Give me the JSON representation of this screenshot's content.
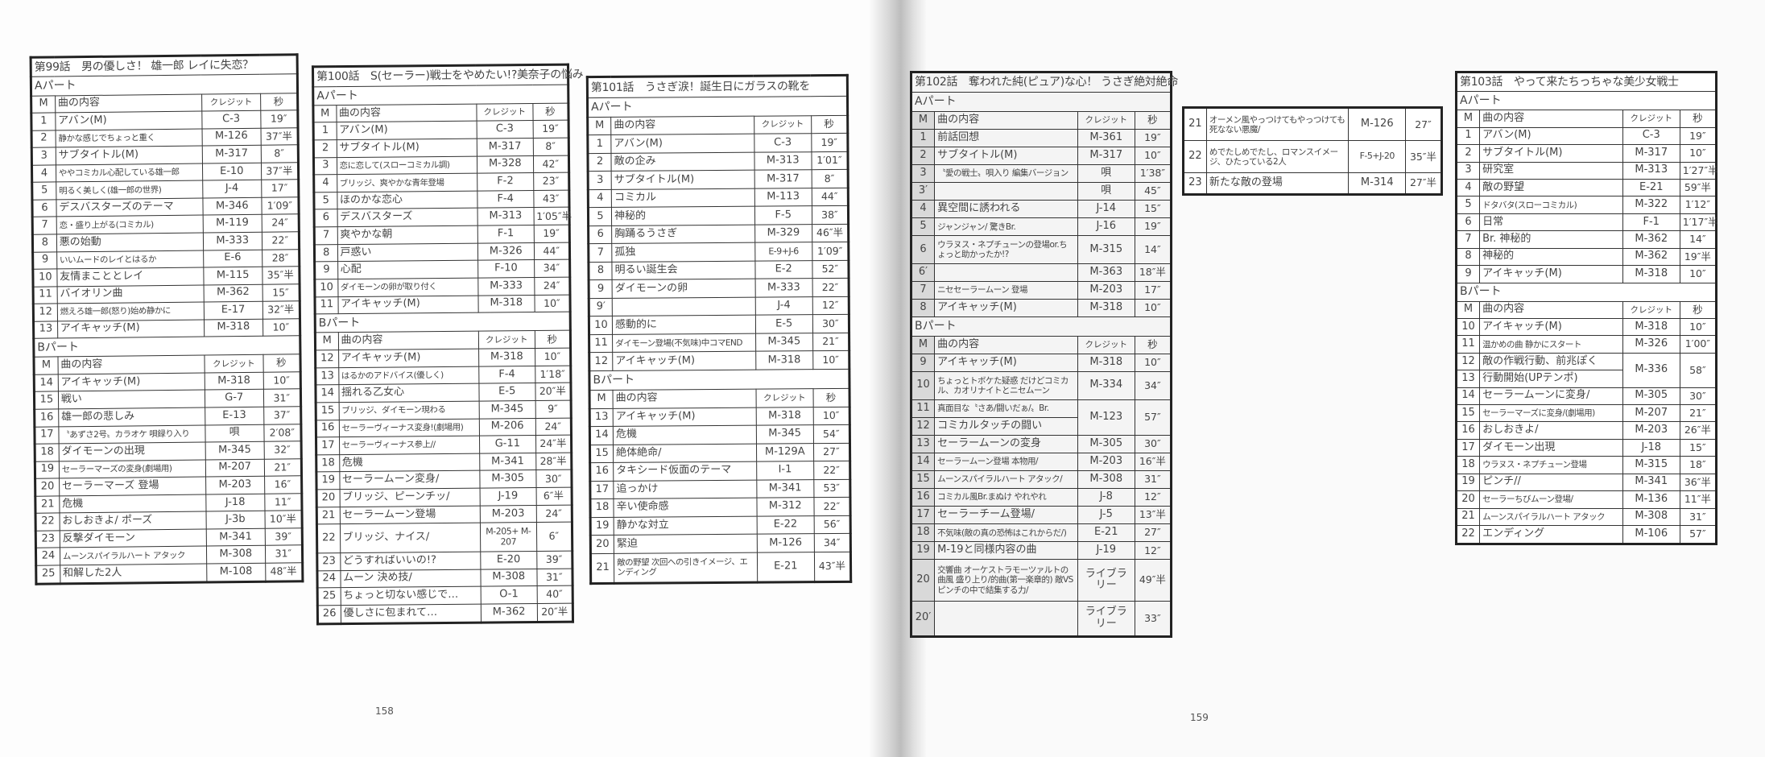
{
  "headers": {
    "m": "M",
    "content": "曲の内容",
    "credit": "クレジット",
    "sec": "秒"
  },
  "page_numbers": {
    "left": "158",
    "right": "159"
  },
  "tables": [
    {
      "id": "t99",
      "title": "第99話　男の優しさ！ 雄一郎 レイに失恋？",
      "parts": [
        {
          "label": "Aパート",
          "rows": [
            {
              "m": "1",
              "content": "アバン(M)",
              "credit": "C-3",
              "sec": "19″"
            },
            {
              "m": "2",
              "content": "静かな感じでちょっと重く",
              "credit": "M-126",
              "sec": "37″半"
            },
            {
              "m": "3",
              "content": "サブタイトル(M)",
              "credit": "M-317",
              "sec": "8″"
            },
            {
              "m": "4",
              "content": "ややコミカル心配している雄一郎",
              "credit": "E-10",
              "sec": "37″半"
            },
            {
              "m": "5",
              "content": "明るく美しく(雄一郎の世界)",
              "credit": "J-4",
              "sec": "17″"
            },
            {
              "m": "6",
              "content": "デスバスターズのテーマ",
              "credit": "M-346",
              "sec": "1′09″"
            },
            {
              "m": "7",
              "content": "恋・盛り上がる(コミカル)",
              "credit": "M-119",
              "sec": "24″"
            },
            {
              "m": "8",
              "content": "悪の始動",
              "credit": "M-333",
              "sec": "22″"
            },
            {
              "m": "9",
              "content": "いいムードのレイとはるか",
              "credit": "E-6",
              "sec": "28″"
            },
            {
              "m": "10",
              "content": "友情まこととレイ",
              "credit": "M-115",
              "sec": "35″半"
            },
            {
              "m": "11",
              "content": "バイオリン曲",
              "credit": "M-362",
              "sec": "15″"
            },
            {
              "m": "12",
              "content": "燃えろ雄一郎(怒り)始め静かに",
              "credit": "E-17",
              "sec": "32″半"
            },
            {
              "m": "13",
              "content": "アイキャッチ(M)",
              "credit": "M-318",
              "sec": "10″"
            }
          ]
        },
        {
          "label": "Bパート",
          "rows": [
            {
              "m": "14",
              "content": "アイキャッチ(M)",
              "credit": "M-318",
              "sec": "10″"
            },
            {
              "m": "15",
              "content": "戦い",
              "credit": "G-7",
              "sec": "31″"
            },
            {
              "m": "16",
              "content": "雄一郎の悲しみ",
              "credit": "E-13",
              "sec": "37″"
            },
            {
              "m": "17",
              "content": "〝あずさ2号〟カラオケ 唄録り入り",
              "credit": "唄",
              "sec": "2′08″"
            },
            {
              "m": "18",
              "content": "ダイモーンの出現",
              "credit": "M-345",
              "sec": "32″"
            },
            {
              "m": "19",
              "content": "セーラーマーズの変身(劇場用)",
              "credit": "M-207",
              "sec": "21″"
            },
            {
              "m": "20",
              "content": "セーラーマーズ 登場",
              "credit": "M-203",
              "sec": "16″"
            },
            {
              "m": "21",
              "content": "危機",
              "credit": "J-18",
              "sec": "11″"
            },
            {
              "m": "22",
              "content": "おしおきよ/ ポーズ",
              "credit": "J-3b",
              "sec": "10″半"
            },
            {
              "m": "23",
              "content": "反撃ダイモーン",
              "credit": "M-341",
              "sec": "39″"
            },
            {
              "m": "24",
              "content": "ムーンスパイラルハート アタック",
              "credit": "M-308",
              "sec": "31″"
            },
            {
              "m": "25",
              "content": "和解した2人",
              "credit": "M-108",
              "sec": "48″半"
            }
          ]
        }
      ]
    },
    {
      "id": "t100",
      "title": "第100話　S(セーラー)戦士をやめたい!?美奈子の悩み",
      "parts": [
        {
          "label": "Aパート",
          "rows": [
            {
              "m": "1",
              "content": "アバン(M)",
              "credit": "C-3",
              "sec": "19″"
            },
            {
              "m": "2",
              "content": "サブタイトル(M)",
              "credit": "M-317",
              "sec": "8″"
            },
            {
              "m": "3",
              "content": "恋に恋して(スローコミカル調)",
              "credit": "M-328",
              "sec": "42″"
            },
            {
              "m": "4",
              "content": "ブリッジ、爽やかな青年登場",
              "credit": "F-2",
              "sec": "23″"
            },
            {
              "m": "5",
              "content": "ほのかな恋心",
              "credit": "F-4",
              "sec": "43″"
            },
            {
              "m": "6",
              "content": "デスバスターズ",
              "credit": "M-313",
              "sec": "1′05″半"
            },
            {
              "m": "7",
              "content": "爽やかな朝",
              "credit": "F-1",
              "sec": "19″"
            },
            {
              "m": "8",
              "content": "戸惑い",
              "credit": "M-326",
              "sec": "44″"
            },
            {
              "m": "9",
              "content": "心配",
              "credit": "F-10",
              "sec": "34″"
            },
            {
              "m": "10",
              "content": "ダイモーンの卵が取り付く",
              "credit": "M-333",
              "sec": "24″"
            },
            {
              "m": "11",
              "content": "アイキャッチ(M)",
              "credit": "M-318",
              "sec": "10″"
            }
          ]
        },
        {
          "label": "Bパート",
          "rows": [
            {
              "m": "12",
              "content": "アイキャッチ(M)",
              "credit": "M-318",
              "sec": "10″"
            },
            {
              "m": "13",
              "content": "はるかのアドバイス(優しく)",
              "credit": "F-4",
              "sec": "1′18″"
            },
            {
              "m": "14",
              "content": "揺れる乙女心",
              "credit": "E-5",
              "sec": "20″半"
            },
            {
              "m": "15",
              "content": "ブリッジ、ダイモーン現わる",
              "credit": "M-345",
              "sec": "9″"
            },
            {
              "m": "16",
              "content": "セーラーヴィーナス変身!(劇場用)",
              "credit": "M-206",
              "sec": "24″"
            },
            {
              "m": "17",
              "content": "セーラーヴィーナス参上//",
              "credit": "G-11",
              "sec": "24″半"
            },
            {
              "m": "18",
              "content": "危機",
              "credit": "M-341",
              "sec": "28″半"
            },
            {
              "m": "19",
              "content": "セーラームーン変身/",
              "credit": "M-305",
              "sec": "30″"
            },
            {
              "m": "20",
              "content": "ブリッジ、ピーンチッ/",
              "credit": "J-19",
              "sec": "6″半"
            },
            {
              "m": "21",
              "content": "セーラームーン登場",
              "credit": "M-203",
              "sec": "24″"
            },
            {
              "m": "22",
              "content": "ブリッジ、ナイス/",
              "credit": "M-205+ M-207",
              "sec": "6″"
            },
            {
              "m": "23",
              "content": "どうすればいいの!?",
              "credit": "E-20",
              "sec": "39″"
            },
            {
              "m": "24",
              "content": "ムーン 決め技/",
              "credit": "M-308",
              "sec": "31″"
            },
            {
              "m": "25",
              "content": "ちょっと切ない感じで…",
              "credit": "O-1",
              "sec": "40″"
            },
            {
              "m": "26",
              "content": "優しさに包まれて…",
              "credit": "M-362",
              "sec": "20″半"
            }
          ]
        }
      ]
    },
    {
      "id": "t101",
      "title": "第101話　うさぎ涙！誕生日にガラスの靴を",
      "parts": [
        {
          "label": "Aパート",
          "rows": [
            {
              "m": "1",
              "content": "アバン(M)",
              "credit": "C-3",
              "sec": "19″"
            },
            {
              "m": "2",
              "content": "敵の企み",
              "credit": "M-313",
              "sec": "1′01″"
            },
            {
              "m": "3",
              "content": "サブタイトル(M)",
              "credit": "M-317",
              "sec": "8″"
            },
            {
              "m": "4",
              "content": "コミカル",
              "credit": "M-113",
              "sec": "44″"
            },
            {
              "m": "5",
              "content": "神秘的",
              "credit": "F-5",
              "sec": "38″"
            },
            {
              "m": "6",
              "content": "胸踊るうさぎ",
              "credit": "M-329",
              "sec": "46″半"
            },
            {
              "m": "7",
              "content": "孤独",
              "credit": "E-9+J-6",
              "sec": "1′09″"
            },
            {
              "m": "8",
              "content": "明るい誕生会",
              "credit": "E-2",
              "sec": "52″"
            },
            {
              "m": "9",
              "content": "ダイモーンの卵",
              "credit": "M-333",
              "sec": "22″"
            },
            {
              "m": "9′",
              "content": "",
              "credit": "J-4",
              "sec": "12″"
            },
            {
              "m": "10",
              "content": "感動的に",
              "credit": "E-5",
              "sec": "30″"
            },
            {
              "m": "11",
              "content": "ダイモーン登場(不気味)中コマEND",
              "credit": "M-345",
              "sec": "21″"
            },
            {
              "m": "12",
              "content": "アイキャッチ(M)",
              "credit": "M-318",
              "sec": "10″"
            }
          ]
        },
        {
          "label": "Bパート",
          "rows": [
            {
              "m": "13",
              "content": "アイキャッチ(M)",
              "credit": "M-318",
              "sec": "10″"
            },
            {
              "m": "14",
              "content": "危機",
              "credit": "M-345",
              "sec": "54″"
            },
            {
              "m": "15",
              "content": "絶体絶命/",
              "credit": "M-129A",
              "sec": "27″"
            },
            {
              "m": "16",
              "content": "タキシード仮面のテーマ",
              "credit": "I-1",
              "sec": "22″"
            },
            {
              "m": "17",
              "content": "追っかけ",
              "credit": "M-341",
              "sec": "53″"
            },
            {
              "m": "18",
              "content": "辛い使命感",
              "credit": "M-312",
              "sec": "22″"
            },
            {
              "m": "19",
              "content": "静かな対立",
              "credit": "E-22",
              "sec": "56″"
            },
            {
              "m": "20",
              "content": "緊迫",
              "credit": "M-126",
              "sec": "34″"
            },
            {
              "m": "21",
              "content": "敵の野望 次回への引きイメージ、エンディング",
              "credit": "E-21",
              "sec": "43″半"
            }
          ]
        }
      ]
    },
    {
      "id": "t102",
      "shaded": true,
      "title": "第102話　奪われた純(ピュア)な心！ うさぎ絶対絶命",
      "parts": [
        {
          "label": "Aパート",
          "rows": [
            {
              "m": "1",
              "content": "前話回想",
              "credit": "M-361",
              "sec": "19″"
            },
            {
              "m": "2",
              "content": "サブタイトル(M)",
              "credit": "M-317",
              "sec": "10″"
            },
            {
              "m": "3",
              "content": "〝愛の戦士〟唄入り 編集バージョン",
              "credit": "唄",
              "sec": "1′38″"
            },
            {
              "m": "3′",
              "content": "",
              "credit": "唄",
              "sec": "45″"
            },
            {
              "m": "4",
              "content": "異空間に誘われる",
              "credit": "J-14",
              "sec": "15″"
            },
            {
              "m": "5",
              "content": "ジャンジャン/ 驚きBr.",
              "credit": "J-16",
              "sec": "19″"
            },
            {
              "m": "6",
              "content": "ウラヌス・ネプチューンの登場or.ちょっと助かったか!?",
              "credit": "M-315",
              "sec": "14″"
            },
            {
              "m": "6′",
              "content": "",
              "credit": "M-363",
              "sec": "18″半"
            },
            {
              "m": "7",
              "content": "ニセセーラームーン 登場",
              "credit": "M-203",
              "sec": "17″"
            },
            {
              "m": "8",
              "content": "アイキャッチ(M)",
              "credit": "M-318",
              "sec": "10″"
            }
          ]
        },
        {
          "label": "Bパート",
          "rows": [
            {
              "m": "9",
              "content": "アイキャッチ(M)",
              "credit": "M-318",
              "sec": "10″"
            },
            {
              "m": "10",
              "content": "ちょっとトボケた疑惑 だけどコミカル、カオリナイトとニセムーン",
              "credit": "M-334",
              "sec": "34″"
            },
            {
              "m": "11",
              "content": "真面目な〝さあ/闘いだぁ/〟Br.",
              "credit": "M-123",
              "sec": "57″"
            },
            {
              "m": "12",
              "content": "コミカルタッチの闘い",
              "shared": true
            },
            {
              "m": "13",
              "content": "セーラームーンの変身",
              "credit": "M-305",
              "sec": "30″"
            },
            {
              "m": "14",
              "content": "セーラームーン登場 本物用/",
              "credit": "M-203",
              "sec": "16″半"
            },
            {
              "m": "15",
              "content": "ムーンスパイラルハート アタック/",
              "credit": "M-308",
              "sec": "31″"
            },
            {
              "m": "16",
              "content": "コミカル風Br.まぬけ やれやれ",
              "credit": "J-8",
              "sec": "12″"
            },
            {
              "m": "17",
              "content": "セーラーチーム登場/",
              "credit": "J-5",
              "sec": "13″半"
            },
            {
              "m": "18",
              "content": "不気味(敵の真の恐怖はこれからだ/)",
              "credit": "E-21",
              "sec": "27″"
            },
            {
              "m": "19",
              "content": "M-19と同様内容の曲",
              "credit": "J-19",
              "sec": "12″"
            },
            {
              "m": "20",
              "content": "交響曲 オーケストラモーツァルトの曲風 盛り上り/的曲(第一楽章的) 敵VSピンチの中で結集する力/",
              "credit": "ライブラリー",
              "sec": "49″半"
            },
            {
              "m": "20′",
              "content": "",
              "credit": "ライブラリー",
              "sec": "33″"
            }
          ]
        }
      ]
    },
    {
      "id": "t102c",
      "parts": [
        {
          "rows": [
            {
              "m": "21",
              "content": "オーメン風やっつけてもやっつけても死なない悪魔/",
              "credit": "M-126",
              "sec": "27″"
            },
            {
              "m": "22",
              "content": "めでたしめでたし、ロマンスイメージ、ひたっている2人",
              "credit": "F-5+J-20",
              "sec": "35″半"
            },
            {
              "m": "23",
              "content": "新たな敵の登場",
              "credit": "M-314",
              "sec": "27″半"
            }
          ]
        }
      ]
    },
    {
      "id": "t103",
      "title": "第103話　やって来たちっちゃな美少女戦士",
      "parts": [
        {
          "label": "Aパート",
          "rows": [
            {
              "m": "1",
              "content": "アバン(M)",
              "credit": "C-3",
              "sec": "19″"
            },
            {
              "m": "2",
              "content": "サブタイトル(M)",
              "credit": "M-317",
              "sec": "10″"
            },
            {
              "m": "3",
              "content": "研究室",
              "credit": "M-313",
              "sec": "1′27″半"
            },
            {
              "m": "4",
              "content": "敵の野望",
              "credit": "E-21",
              "sec": "59″半"
            },
            {
              "m": "5",
              "content": "ドタバタ(スローコミカル)",
              "credit": "M-322",
              "sec": "1′12″"
            },
            {
              "m": "6",
              "content": "日常",
              "credit": "F-1",
              "sec": "1′17″半"
            },
            {
              "m": "7",
              "content": "Br. 神秘的",
              "credit": "M-362",
              "sec": "14″"
            },
            {
              "m": "8",
              "content": "神秘的",
              "credit": "M-362",
              "sec": "19″半"
            },
            {
              "m": "9",
              "content": "アイキャッチ(M)",
              "credit": "M-318",
              "sec": "10″"
            }
          ]
        },
        {
          "label": "Bパート",
          "rows": [
            {
              "m": "10",
              "content": "アイキャッチ(M)",
              "credit": "M-318",
              "sec": "10″"
            },
            {
              "m": "11",
              "content": "温かめの曲 静かにスタート",
              "credit": "M-326",
              "sec": "1′00″"
            },
            {
              "m": "12",
              "content": "敵の作戦行動、前兆ぽく",
              "credit": "M-336",
              "sec": "58″"
            },
            {
              "m": "13",
              "content": "行動開始(UPテンポ)",
              "shared": true
            },
            {
              "m": "14",
              "content": "セーラームーンに変身/",
              "credit": "M-305",
              "sec": "30″"
            },
            {
              "m": "15",
              "content": "セーラーマーズに変身/(劇場用)",
              "credit": "M-207",
              "sec": "21″"
            },
            {
              "m": "16",
              "content": "おしおきよ/",
              "credit": "M-203",
              "sec": "26″半"
            },
            {
              "m": "17",
              "content": "ダイモーン出現",
              "credit": "J-18",
              "sec": "15″"
            },
            {
              "m": "18",
              "content": "ウラヌス・ネプチューン登場",
              "credit": "M-315",
              "sec": "18″"
            },
            {
              "m": "19",
              "content": "ピンチ//",
              "credit": "M-341",
              "sec": "36″半"
            },
            {
              "m": "20",
              "content": "セーラーちびムーン登場/",
              "credit": "M-136",
              "sec": "11″半"
            },
            {
              "m": "21",
              "content": "ムーンスパイラルハート アタック",
              "credit": "M-308",
              "sec": "31″"
            },
            {
              "m": "22",
              "content": "エンディング",
              "credit": "M-106",
              "sec": "57″"
            }
          ]
        }
      ]
    }
  ]
}
